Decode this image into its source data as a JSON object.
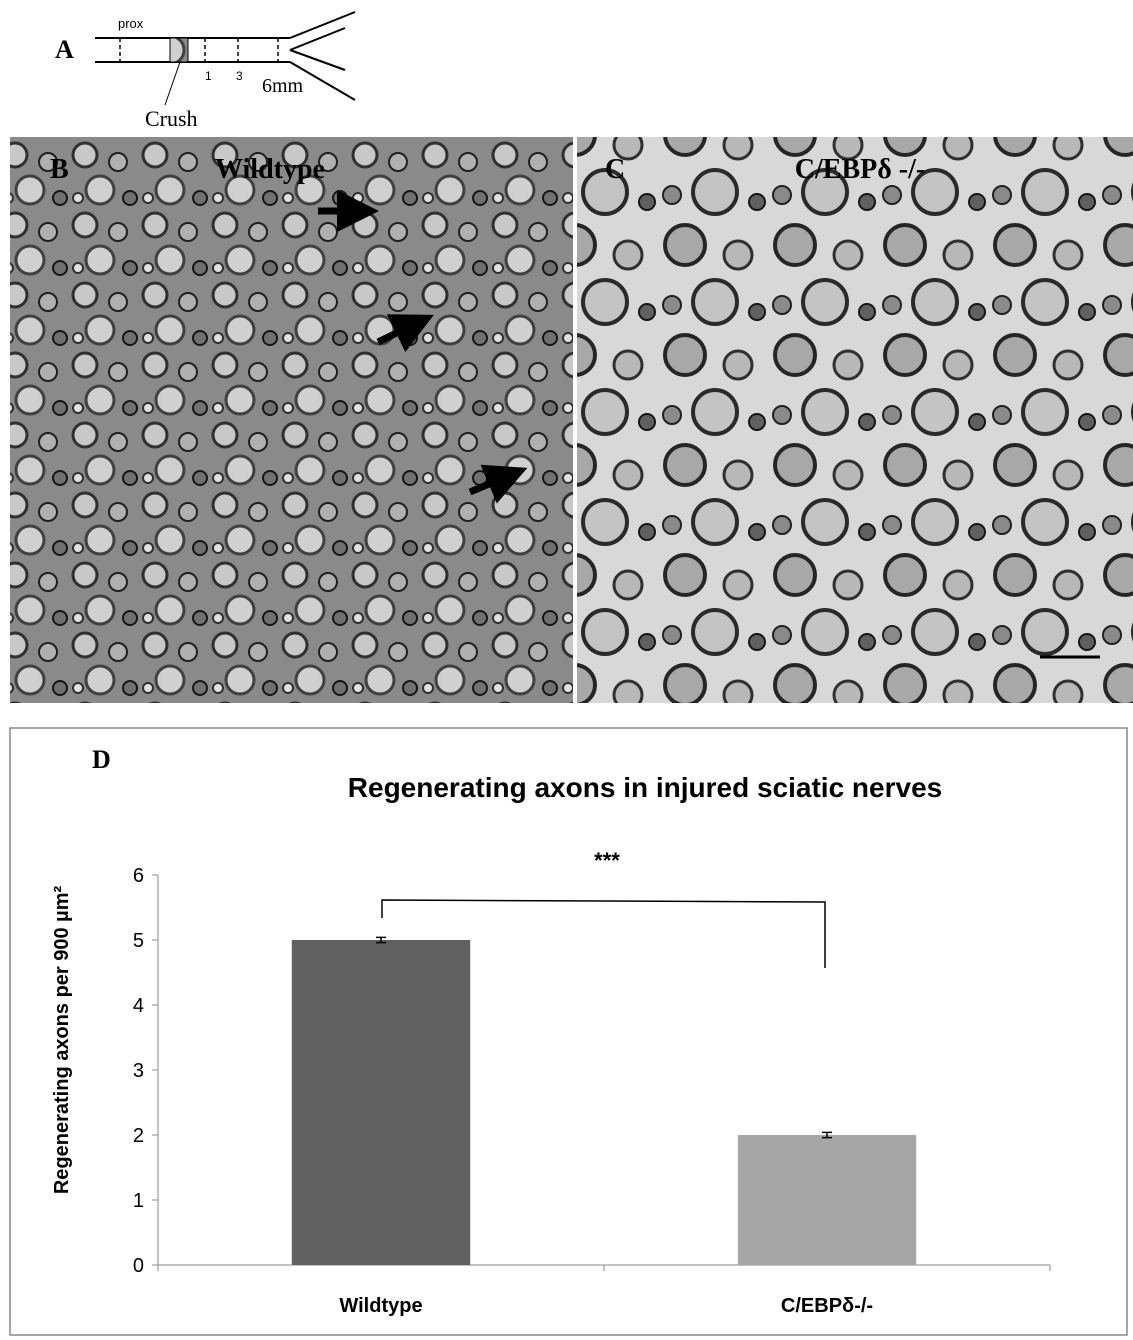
{
  "panel_a": {
    "label": "A",
    "prox": "prox",
    "marks": [
      "1",
      "3",
      "6mm"
    ],
    "crush": "Crush"
  },
  "panel_b": {
    "label": "B",
    "title": "Wildtype"
  },
  "panel_c": {
    "label": "C",
    "title": "C/EBPδ -/-"
  },
  "chart_data": {
    "type": "bar",
    "panel_label": "D",
    "title": "Regenerating axons in injured sciatic nerves",
    "y_label": "Regenerating axons per 900 µm²",
    "categories": [
      "Wildtype",
      "C/EBPδ-/-"
    ],
    "values": [
      5,
      2
    ],
    "errors": [
      0.04,
      0.04
    ],
    "colors": [
      "#606060",
      "#a6a6a6"
    ],
    "ylim": [
      0,
      6
    ],
    "yticks": [
      0,
      1,
      2,
      3,
      4,
      5,
      6
    ],
    "annotation": "***"
  }
}
